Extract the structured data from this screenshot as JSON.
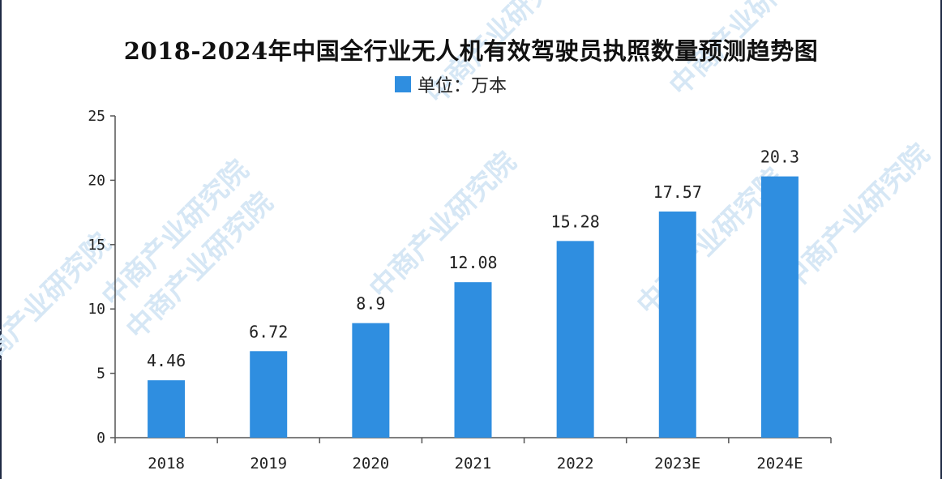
{
  "watermark": "中商产业研究院",
  "chart_data": {
    "type": "bar",
    "title": "2018-2024年中国全行业无人机有效驾驶员执照数量预测趋势图",
    "legend": [
      "单位：万本"
    ],
    "legend_placement": "top-center",
    "categories": [
      "2018",
      "2019",
      "2020",
      "2021",
      "2022",
      "2023E",
      "2024E"
    ],
    "series": [
      {
        "name": "单位：万本",
        "values": [
          4.46,
          6.72,
          8.9,
          12.08,
          15.28,
          17.57,
          20.3
        ],
        "labels": [
          "4.46",
          "6.72",
          "8.9",
          "12.08",
          "15.28",
          "17.57",
          "20.3"
        ],
        "color": "#2f8ee0"
      }
    ],
    "yticks": [
      0,
      5,
      10,
      15,
      20,
      25
    ],
    "ylim": [
      0,
      25
    ],
    "grid": false
  }
}
